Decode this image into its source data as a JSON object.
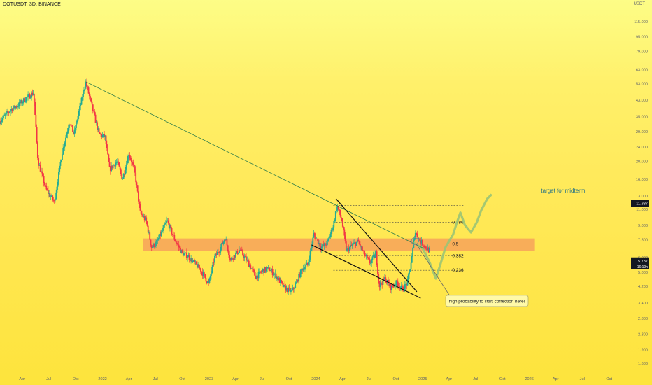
{
  "header": {
    "symbol_line": "DOTUSDT, 3D, BINANCE",
    "currency": "USDT"
  },
  "colors": {
    "candle_up": "#22ab94",
    "candle_down": "#f23645",
    "zone": "#f7a25a",
    "trendline": "#2f7d4a",
    "projection": "#9bc474",
    "price_tag": "#131722",
    "target_line": "#2a62c9"
  },
  "chart_data": {
    "type": "candlestick",
    "scale": "log",
    "ylim": [
      1.35,
      150
    ],
    "y_tick_labels": [
      "115.000",
      "95.000",
      "79.000",
      "63.000",
      "53.000",
      "43.000",
      "35.000",
      "29.000",
      "24.000",
      "20.000",
      "16.000",
      "13.000",
      "11.000",
      "9.000",
      "7.500",
      "6.000",
      "5.000",
      "4.200",
      "3.400",
      "2.800",
      "2.300",
      "1.900",
      "1.600"
    ],
    "y_ticks": [
      115,
      95,
      79,
      63,
      53,
      43,
      35,
      29,
      24,
      20,
      16,
      13,
      11,
      9,
      7.5,
      6,
      5,
      4.2,
      3.4,
      2.8,
      2.3,
      1.9,
      1.6
    ],
    "x_tick_labels": [
      "Apr",
      "Jul",
      "Oct",
      "2022",
      "Apr",
      "Jul",
      "Oct",
      "2023",
      "Apr",
      "Jul",
      "Oct",
      "2024",
      "Apr",
      "Jul",
      "Oct",
      "2025",
      "Apr",
      "Jul",
      "Oct",
      "2026",
      "Apr",
      "Jul",
      "Oct"
    ],
    "x_ticks": [
      "2021-04-01",
      "2021-07-01",
      "2021-10-01",
      "2022-01-01",
      "2022-04-01",
      "2022-07-01",
      "2022-10-01",
      "2023-01-01",
      "2023-04-01",
      "2023-07-01",
      "2023-10-01",
      "2024-01-01",
      "2024-04-01",
      "2024-07-01",
      "2024-10-01",
      "2025-01-01",
      "2025-04-01",
      "2025-07-01",
      "2025-10-01",
      "2026-01-01",
      "2026-04-01",
      "2026-07-01",
      "2026-10-01"
    ],
    "x_range": [
      "2021-01-15",
      "2026-12-15"
    ],
    "price_path": [
      [
        "2021-01-15",
        33
      ],
      [
        "2021-02-20",
        38
      ],
      [
        "2021-03-15",
        40
      ],
      [
        "2021-04-15",
        44
      ],
      [
        "2021-05-10",
        47
      ],
      [
        "2021-05-25",
        20
      ],
      [
        "2021-06-22",
        14
      ],
      [
        "2021-07-20",
        12
      ],
      [
        "2021-08-15",
        22
      ],
      [
        "2021-09-10",
        33
      ],
      [
        "2021-09-25",
        28
      ],
      [
        "2021-10-20",
        42
      ],
      [
        "2021-11-04",
        54
      ],
      [
        "2021-11-25",
        40
      ],
      [
        "2021-12-20",
        28
      ],
      [
        "2022-01-10",
        27
      ],
      [
        "2022-01-25",
        18
      ],
      [
        "2022-02-20",
        20
      ],
      [
        "2022-03-10",
        16
      ],
      [
        "2022-04-01",
        22
      ],
      [
        "2022-04-20",
        18
      ],
      [
        "2022-05-10",
        10.5
      ],
      [
        "2022-05-30",
        9.5
      ],
      [
        "2022-06-18",
        6.8
      ],
      [
        "2022-07-05",
        7.2
      ],
      [
        "2022-08-10",
        9.5
      ],
      [
        "2022-09-05",
        7.5
      ],
      [
        "2022-10-01",
        6.3
      ],
      [
        "2022-10-20",
        6.1
      ],
      [
        "2022-11-10",
        5.6
      ],
      [
        "2022-12-01",
        5.2
      ],
      [
        "2022-12-30",
        4.3
      ],
      [
        "2023-01-20",
        6.0
      ],
      [
        "2023-02-10",
        6.8
      ],
      [
        "2023-02-25",
        7.7
      ],
      [
        "2023-03-15",
        5.8
      ],
      [
        "2023-04-15",
        6.6
      ],
      [
        "2023-05-15",
        5.6
      ],
      [
        "2023-06-10",
        4.7
      ],
      [
        "2023-07-05",
        5.1
      ],
      [
        "2023-07-25",
        5.2
      ],
      [
        "2023-08-20",
        4.7
      ],
      [
        "2023-09-15",
        4.1
      ],
      [
        "2023-10-10",
        3.9
      ],
      [
        "2023-10-25",
        4.3
      ],
      [
        "2023-11-15",
        5.2
      ],
      [
        "2023-12-05",
        5.5
      ],
      [
        "2023-12-25",
        8.0
      ],
      [
        "2024-01-20",
        6.8
      ],
      [
        "2024-02-10",
        7.2
      ],
      [
        "2024-03-01",
        9.0
      ],
      [
        "2024-03-14",
        11.5
      ],
      [
        "2024-03-30",
        9.5
      ],
      [
        "2024-04-15",
        6.5
      ],
      [
        "2024-05-05",
        7.0
      ],
      [
        "2024-05-25",
        7.3
      ],
      [
        "2024-06-15",
        6.2
      ],
      [
        "2024-07-05",
        5.6
      ],
      [
        "2024-07-25",
        6.3
      ],
      [
        "2024-08-05",
        4.2
      ],
      [
        "2024-08-25",
        4.6
      ],
      [
        "2024-09-15",
        4.1
      ],
      [
        "2024-10-05",
        4.4
      ],
      [
        "2024-10-25",
        4.0
      ],
      [
        "2024-11-10",
        4.4
      ],
      [
        "2024-11-25",
        6.0
      ],
      [
        "2024-12-05",
        8.3
      ],
      [
        "2024-12-20",
        7.5
      ],
      [
        "2025-01-10",
        6.8
      ],
      [
        "2025-01-25",
        6.5
      ]
    ],
    "price_band": {
      "y": [
        6.5,
        7.6
      ],
      "x": [
        "2022-05-20",
        "2026-01-20"
      ]
    },
    "trendlines": [
      {
        "name": "long-descending-trendline",
        "from": [
          "2021-11-04",
          54
        ],
        "to": [
          "2025-01-05",
          6.7
        ]
      },
      {
        "name": "wedge-upper-line",
        "from": [
          "2024-03-10",
          12.5
        ],
        "to": [
          "2024-12-12",
          3.9
        ]
      },
      {
        "name": "wedge-lower-line",
        "from": [
          "2023-12-18",
          7.0
        ],
        "to": [
          "2024-12-25",
          3.6
        ]
      }
    ],
    "fib_levels": [
      {
        "label": "0.786",
        "value": 9.3
      },
      {
        "label": "0.5",
        "value": 7.1
      },
      {
        "label": "0.382",
        "value": 6.1
      },
      {
        "label": "0.236",
        "value": 5.1
      }
    ],
    "fib_range": {
      "x": [
        "2024-03-01",
        "2025-05-20"
      ],
      "top": 11.5,
      "bottom": 4.0
    },
    "projection_path": [
      [
        "2024-12-01",
        7.2
      ],
      [
        "2025-01-01",
        6.7
      ],
      [
        "2025-01-25",
        5.6
      ],
      [
        "2025-02-15",
        4.6
      ],
      [
        "2025-03-01",
        5.4
      ],
      [
        "2025-03-20",
        6.8
      ],
      [
        "2025-04-15",
        8.0
      ],
      [
        "2025-04-28",
        9.3
      ],
      [
        "2025-05-10",
        10.5
      ],
      [
        "2025-05-25",
        9.0
      ],
      [
        "2025-06-15",
        8.2
      ],
      [
        "2025-07-05",
        9.3
      ],
      [
        "2025-07-20",
        10.8
      ],
      [
        "2025-08-10",
        12.5
      ],
      [
        "2025-08-25",
        13.2
      ]
    ],
    "annotations": [
      {
        "text": "high probability to start correction here!",
        "x": "2025-03-30",
        "y": 3.45
      },
      {
        "text": "target for midterm",
        "x": "2026-02-10",
        "y": 13.5
      }
    ],
    "target_line_y": 11.7,
    "current_price": {
      "label": "5.737",
      "value": 5.737,
      "sub_label": "16:19h"
    },
    "target_price_tag": {
      "label": "11.837",
      "value": 11.837
    }
  }
}
